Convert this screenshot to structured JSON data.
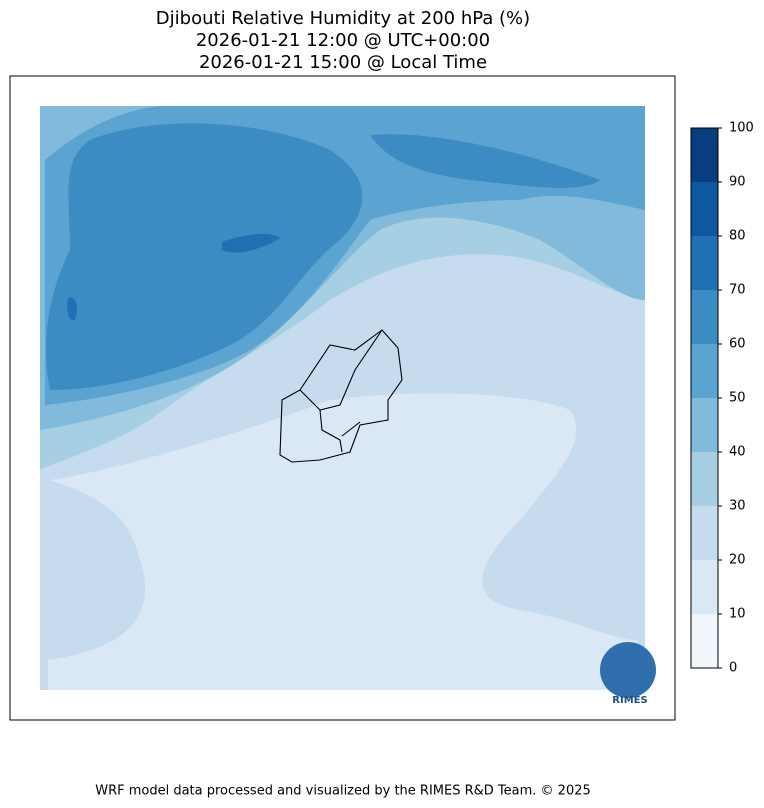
{
  "map": {
    "title": [
      "Djibouti Relative Humidity at 200 hPa (%)",
      "2026-01-21 12:00 @ UTC+00:00",
      "2026-01-21 15:00 @ Local Time"
    ],
    "colorbar": {
      "ticks": [
        0,
        10,
        20,
        30,
        40,
        50,
        60,
        70,
        80,
        90,
        100
      ],
      "colors": [
        "#eff6fc",
        "#dae8f5",
        "#c7dbef",
        "#a6cfe3",
        "#82badb",
        "#5ba3d0",
        "#3d8bc3",
        "#2070b4",
        "#0e58a2",
        "#083d7f"
      ]
    },
    "logo_text": "RIMES",
    "footer": "WRF model data processed and visualized by the RIMES R&D Team. © 2025"
  }
}
